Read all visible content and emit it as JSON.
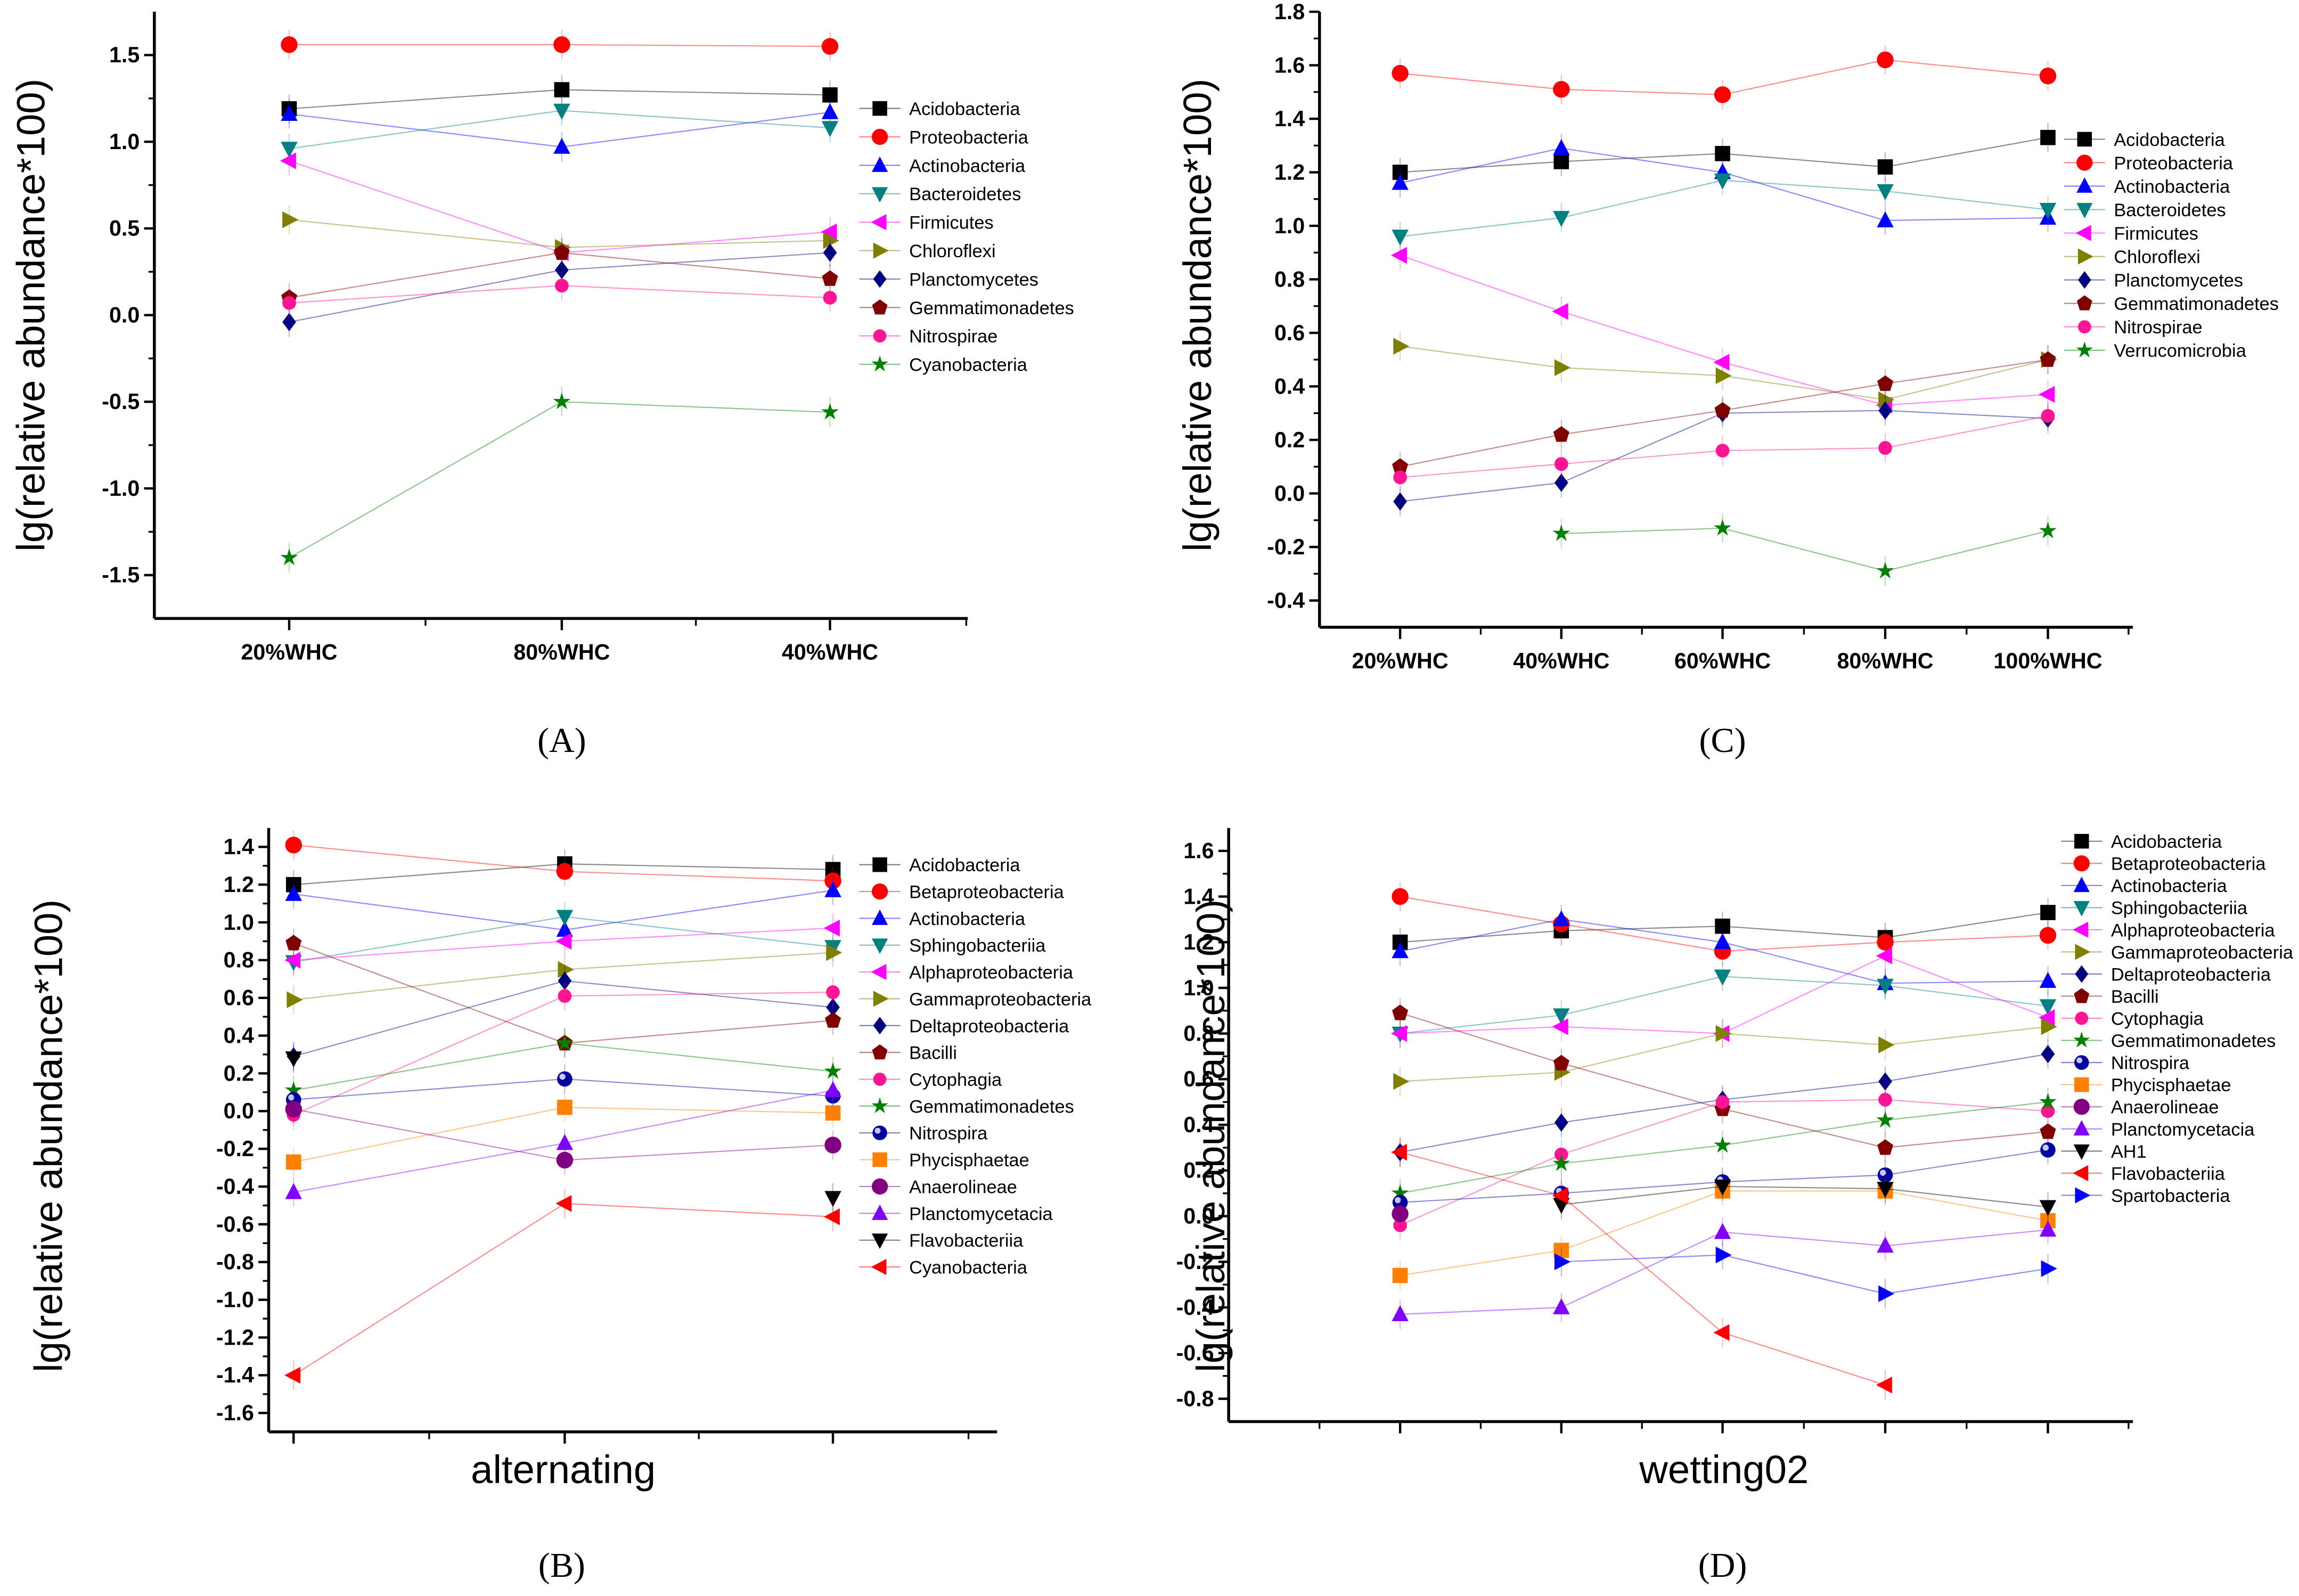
{
  "chart_data": [
    {
      "type": "line",
      "panel_label": "(A)",
      "xlabel": "",
      "ylabel": "lg(relative abundance*100)",
      "categories": [
        "20%WHC",
        "80%WHC",
        "40%WHC"
      ],
      "ylim": [
        -1.75,
        1.75
      ],
      "yticks": [
        -1.5,
        -1.0,
        -0.5,
        0.0,
        0.5,
        1.0,
        1.5
      ],
      "tick_decimals": 1,
      "legend_position": "right",
      "series": [
        {
          "name": "Acidobacteria",
          "marker": "square",
          "color": "#000000",
          "values": [
            1.19,
            1.3,
            1.27
          ]
        },
        {
          "name": "Proteobacteria",
          "marker": "circle",
          "color": "#ff0000",
          "values": [
            1.56,
            1.56,
            1.55
          ]
        },
        {
          "name": "Actinobacteria",
          "marker": "triangle-up",
          "color": "#0000ff",
          "values": [
            1.16,
            0.97,
            1.17
          ]
        },
        {
          "name": "Bacteroidetes",
          "marker": "triangle-down",
          "color": "#008080",
          "values": [
            0.96,
            1.18,
            1.08
          ]
        },
        {
          "name": "Firmicutes",
          "marker": "triangle-left",
          "color": "#ff00ff",
          "values": [
            0.89,
            0.36,
            0.48
          ]
        },
        {
          "name": "Chloroflexi",
          "marker": "triangle-right",
          "color": "#808000",
          "values": [
            0.55,
            0.39,
            0.43
          ]
        },
        {
          "name": "Planctomycetes",
          "marker": "diamond",
          "color": "#000080",
          "values": [
            -0.04,
            0.26,
            0.36
          ]
        },
        {
          "name": "Gemmatimonadetes",
          "marker": "pentagon",
          "color": "#800000",
          "values": [
            0.1,
            0.36,
            0.21
          ]
        },
        {
          "name": "Nitrospirae",
          "marker": "hexagon",
          "color": "#ff1493",
          "values": [
            0.07,
            0.17,
            0.1
          ]
        },
        {
          "name": "Cyanobacteria",
          "marker": "star",
          "color": "#008000",
          "values": [
            -1.4,
            -0.5,
            -0.56
          ]
        }
      ]
    },
    {
      "type": "line",
      "panel_label": "(C)",
      "xlabel": "",
      "ylabel": "lg(relative abundance*100)",
      "categories": [
        "20%WHC",
        "40%WHC",
        "60%WHC",
        "80%WHC",
        "100%WHC"
      ],
      "ylim": [
        -0.5,
        1.8
      ],
      "yticks": [
        -0.4,
        -0.2,
        0.0,
        0.2,
        0.4,
        0.6,
        0.8,
        1.0,
        1.2,
        1.4,
        1.6,
        1.8
      ],
      "tick_decimals": 1,
      "legend_position": "right",
      "series": [
        {
          "name": "Acidobacteria",
          "marker": "square",
          "color": "#000000",
          "values": [
            1.2,
            1.24,
            1.27,
            1.22,
            1.33
          ]
        },
        {
          "name": "Proteobacteria",
          "marker": "circle",
          "color": "#ff0000",
          "values": [
            1.57,
            1.51,
            1.49,
            1.62,
            1.56
          ]
        },
        {
          "name": "Actinobacteria",
          "marker": "triangle-up",
          "color": "#0000ff",
          "values": [
            1.16,
            1.29,
            1.2,
            1.02,
            1.03
          ]
        },
        {
          "name": "Bacteroidetes",
          "marker": "triangle-down",
          "color": "#008080",
          "values": [
            0.96,
            1.03,
            1.17,
            1.13,
            1.06
          ]
        },
        {
          "name": "Firmicutes",
          "marker": "triangle-left",
          "color": "#ff00ff",
          "values": [
            0.89,
            0.68,
            0.49,
            0.33,
            0.37
          ]
        },
        {
          "name": "Chloroflexi",
          "marker": "triangle-right",
          "color": "#808000",
          "values": [
            0.55,
            0.47,
            0.44,
            0.35,
            0.5
          ]
        },
        {
          "name": "Planctomycetes",
          "marker": "diamond",
          "color": "#000080",
          "values": [
            -0.03,
            0.04,
            0.3,
            0.31,
            0.28
          ]
        },
        {
          "name": "Gemmatimonadetes",
          "marker": "pentagon",
          "color": "#800000",
          "values": [
            0.1,
            0.22,
            0.31,
            0.41,
            0.5
          ]
        },
        {
          "name": "Nitrospirae",
          "marker": "hexagon",
          "color": "#ff1493",
          "values": [
            0.06,
            0.11,
            0.16,
            0.17,
            0.29
          ]
        },
        {
          "name": "Verrucomicrobia",
          "marker": "star",
          "color": "#008000",
          "values": [
            null,
            -0.15,
            -0.13,
            -0.29,
            -0.14
          ]
        }
      ]
    },
    {
      "type": "line",
      "panel_label": "(B)",
      "xlabel": "alternating",
      "ylabel": "lg(relative abundance*100)",
      "categories": [
        "",
        "",
        ""
      ],
      "ylim": [
        -1.7,
        1.5
      ],
      "yticks": [
        -1.6,
        -1.4,
        -1.2,
        -1.0,
        -0.8,
        -0.6,
        -0.4,
        -0.2,
        0.0,
        0.2,
        0.4,
        0.6,
        0.8,
        1.0,
        1.2,
        1.4
      ],
      "tick_decimals": 1,
      "legend_position": "right",
      "series": [
        {
          "name": "Acidobacteria",
          "marker": "square",
          "color": "#000000",
          "values": [
            1.2,
            1.31,
            1.28
          ]
        },
        {
          "name": "Betaproteobacteria",
          "marker": "circle",
          "color": "#ff0000",
          "values": [
            1.41,
            1.27,
            1.22
          ]
        },
        {
          "name": "Actinobacteria",
          "marker": "triangle-up",
          "color": "#0000ff",
          "values": [
            1.15,
            0.96,
            1.17
          ]
        },
        {
          "name": "Sphingobacteriia",
          "marker": "triangle-down",
          "color": "#008080",
          "values": [
            0.79,
            1.03,
            0.87
          ]
        },
        {
          "name": "Alphaproteobacteria",
          "marker": "triangle-left",
          "color": "#ff00ff",
          "values": [
            0.8,
            0.9,
            0.97
          ]
        },
        {
          "name": "Gammaproteobacteria",
          "marker": "triangle-right",
          "color": "#808000",
          "values": [
            0.59,
            0.75,
            0.84
          ]
        },
        {
          "name": "Deltaproteobacteria",
          "marker": "diamond",
          "color": "#000080",
          "values": [
            0.29,
            0.69,
            0.55
          ]
        },
        {
          "name": "Bacilli",
          "marker": "pentagon",
          "color": "#800000",
          "values": [
            0.89,
            0.36,
            0.48
          ]
        },
        {
          "name": "Cytophagia",
          "marker": "hexagon",
          "color": "#ff1493",
          "values": [
            -0.02,
            0.61,
            0.63
          ]
        },
        {
          "name": "Gemmatimonadetes",
          "marker": "star",
          "color": "#008000",
          "values": [
            0.11,
            0.36,
            0.21
          ]
        },
        {
          "name": "Nitrospira",
          "marker": "ball",
          "color": "#0000a0",
          "values": [
            0.06,
            0.17,
            0.08
          ]
        },
        {
          "name": "Phycisphaetae",
          "marker": "square",
          "color": "#ff8000",
          "values": [
            -0.27,
            0.02,
            -0.01
          ]
        },
        {
          "name": "Anaerolineae",
          "marker": "circle",
          "color": "#800080",
          "values": [
            0.01,
            -0.26,
            -0.18
          ]
        },
        {
          "name": "Planctomycetacia",
          "marker": "triangle-up",
          "color": "#8000ff",
          "values": [
            -0.43,
            -0.17,
            0.11
          ]
        },
        {
          "name": "Flavobacteriia",
          "marker": "triangle-down",
          "color": "#000000",
          "values": [
            0.28,
            null,
            -0.46
          ]
        },
        {
          "name": "Cyanobacteria",
          "marker": "triangle-left",
          "color": "#ff0000",
          "values": [
            -1.4,
            -0.49,
            -0.56
          ]
        }
      ]
    },
    {
      "type": "line",
      "panel_label": "(D)",
      "xlabel": "wetting02",
      "ylabel": "lg(relative abundance*100)",
      "categories": [
        "",
        "",
        "",
        "",
        ""
      ],
      "ylim": [
        -0.9,
        1.7
      ],
      "yticks": [
        -0.8,
        -0.6,
        -0.4,
        -0.2,
        0.0,
        0.2,
        0.4,
        0.6,
        0.8,
        1.0,
        1.2,
        1.4,
        1.6
      ],
      "tick_decimals": 1,
      "legend_position": "right",
      "series": [
        {
          "name": "Acidobacteria",
          "marker": "square",
          "color": "#000000",
          "values": [
            1.2,
            1.25,
            1.27,
            1.22,
            1.33
          ]
        },
        {
          "name": "Betaproteobacteria",
          "marker": "circle",
          "color": "#ff0000",
          "values": [
            1.4,
            1.28,
            1.16,
            1.2,
            1.23
          ]
        },
        {
          "name": "Actinobacteria",
          "marker": "triangle-up",
          "color": "#0000ff",
          "values": [
            1.16,
            1.3,
            1.2,
            1.02,
            1.03
          ]
        },
        {
          "name": "Sphingobacteriia",
          "marker": "triangle-down",
          "color": "#008080",
          "values": [
            0.8,
            0.88,
            1.05,
            1.01,
            0.92
          ]
        },
        {
          "name": "Alphaproteobacteria",
          "marker": "triangle-left",
          "color": "#ff00ff",
          "values": [
            0.8,
            0.83,
            0.8,
            1.14,
            0.87
          ]
        },
        {
          "name": "Gammaproteobacteria",
          "marker": "triangle-right",
          "color": "#808000",
          "values": [
            0.59,
            0.63,
            0.8,
            0.75,
            0.83
          ]
        },
        {
          "name": "Deltaproteobacteria",
          "marker": "diamond",
          "color": "#000080",
          "values": [
            0.28,
            0.41,
            0.51,
            0.59,
            0.71
          ]
        },
        {
          "name": "Bacilli",
          "marker": "pentagon",
          "color": "#800000",
          "values": [
            0.89,
            0.67,
            0.47,
            0.3,
            0.37
          ]
        },
        {
          "name": "Cytophagia",
          "marker": "hexagon",
          "color": "#ff1493",
          "values": [
            -0.04,
            0.27,
            0.5,
            0.51,
            0.46
          ]
        },
        {
          "name": "Gemmatimonadetes",
          "marker": "star",
          "color": "#008000",
          "values": [
            0.1,
            0.23,
            0.31,
            0.42,
            0.5
          ]
        },
        {
          "name": "Nitrospira",
          "marker": "ball",
          "color": "#0000a0",
          "values": [
            0.06,
            0.1,
            0.15,
            0.18,
            0.29
          ]
        },
        {
          "name": "Phycisphaetae",
          "marker": "square",
          "color": "#ff8000",
          "values": [
            -0.26,
            -0.15,
            0.11,
            0.11,
            -0.02
          ]
        },
        {
          "name": "Anaerolineae",
          "marker": "circle",
          "color": "#800080",
          "values": [
            0.01,
            null,
            null,
            null,
            null
          ]
        },
        {
          "name": "Planctomycetacia",
          "marker": "triangle-up",
          "color": "#8000ff",
          "values": [
            -0.43,
            -0.4,
            -0.07,
            -0.13,
            -0.06
          ]
        },
        {
          "name": "AH1",
          "marker": "triangle-down",
          "color": "#000000",
          "values": [
            null,
            0.05,
            0.13,
            0.12,
            0.04
          ]
        },
        {
          "name": "Flavobacteriia",
          "marker": "triangle-left",
          "color": "#ff0000",
          "values": [
            0.28,
            0.09,
            -0.51,
            -0.74,
            null
          ]
        },
        {
          "name": "Spartobacteria",
          "marker": "triangle-right",
          "color": "#0000ff",
          "values": [
            null,
            -0.2,
            -0.17,
            -0.34,
            -0.23
          ]
        }
      ]
    }
  ]
}
